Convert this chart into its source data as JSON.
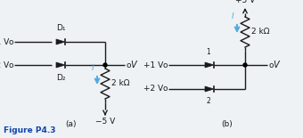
{
  "fig_label": "Figure P4.3",
  "label_a": "(a)",
  "label_b": "(b)",
  "bg_color": "#eef2f5",
  "line_color": "#1a1a1a",
  "diode_color": "#1a1a1a",
  "arrow_color": "#55aadd",
  "text_color": "#1a1a1a",
  "fig_label_color": "#1144aa",
  "resistor_label": "2 kΩ",
  "current_label": "I",
  "diode_labels_a": [
    "D₁",
    "D₂"
  ],
  "v1_label": "+1 V",
  "v2_label": "+2 V",
  "v5n_label": "−5 V",
  "v5p_label": "+5 V",
  "v_out_label": "V",
  "d1_label": "1",
  "d2_label": "2"
}
